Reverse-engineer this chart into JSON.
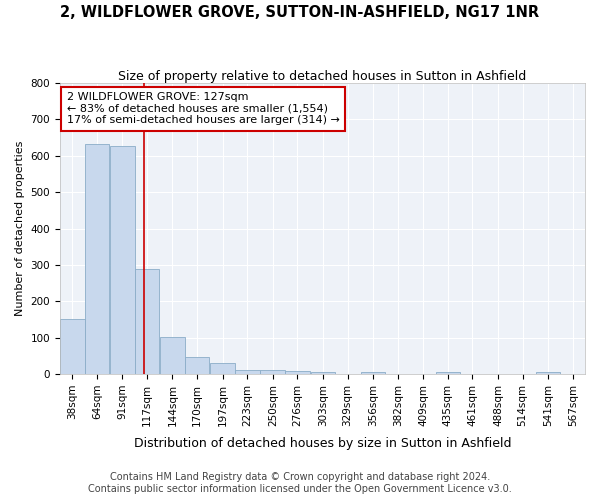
{
  "title": "2, WILDFLOWER GROVE, SUTTON-IN-ASHFIELD, NG17 1NR",
  "subtitle": "Size of property relative to detached houses in Sutton in Ashfield",
  "xlabel": "Distribution of detached houses by size in Sutton in Ashfield",
  "ylabel": "Number of detached properties",
  "footer_line1": "Contains HM Land Registry data © Crown copyright and database right 2024.",
  "footer_line2": "Contains public sector information licensed under the Open Government Licence v3.0.",
  "bins": [
    38,
    64,
    91,
    117,
    144,
    170,
    197,
    223,
    250,
    276,
    303,
    329,
    356,
    382,
    409,
    435,
    461,
    488,
    514,
    541,
    567
  ],
  "counts": [
    150,
    632,
    628,
    290,
    103,
    47,
    30,
    10,
    11,
    8,
    5,
    0,
    5,
    0,
    0,
    5,
    0,
    0,
    0,
    5,
    0
  ],
  "bar_color": "#c8d8ed",
  "bar_edge_color": "#8aacc8",
  "property_size": 127,
  "vline_color": "#cc0000",
  "annotation_line1": "2 WILDFLOWER GROVE: 127sqm",
  "annotation_line2": "← 83% of detached houses are smaller (1,554)",
  "annotation_line3": "17% of semi-detached houses are larger (314) →",
  "annotation_box_color": "white",
  "annotation_box_edge_color": "#cc0000",
  "ylim": [
    0,
    800
  ],
  "yticks": [
    0,
    100,
    200,
    300,
    400,
    500,
    600,
    700,
    800
  ],
  "background_color": "#ffffff",
  "plot_background_color": "#eef2f8",
  "title_fontsize": 10.5,
  "subtitle_fontsize": 9,
  "ylabel_fontsize": 8,
  "tick_label_fontsize": 7.5,
  "xlabel_fontsize": 9,
  "footer_fontsize": 7,
  "annotation_fontsize": 8
}
